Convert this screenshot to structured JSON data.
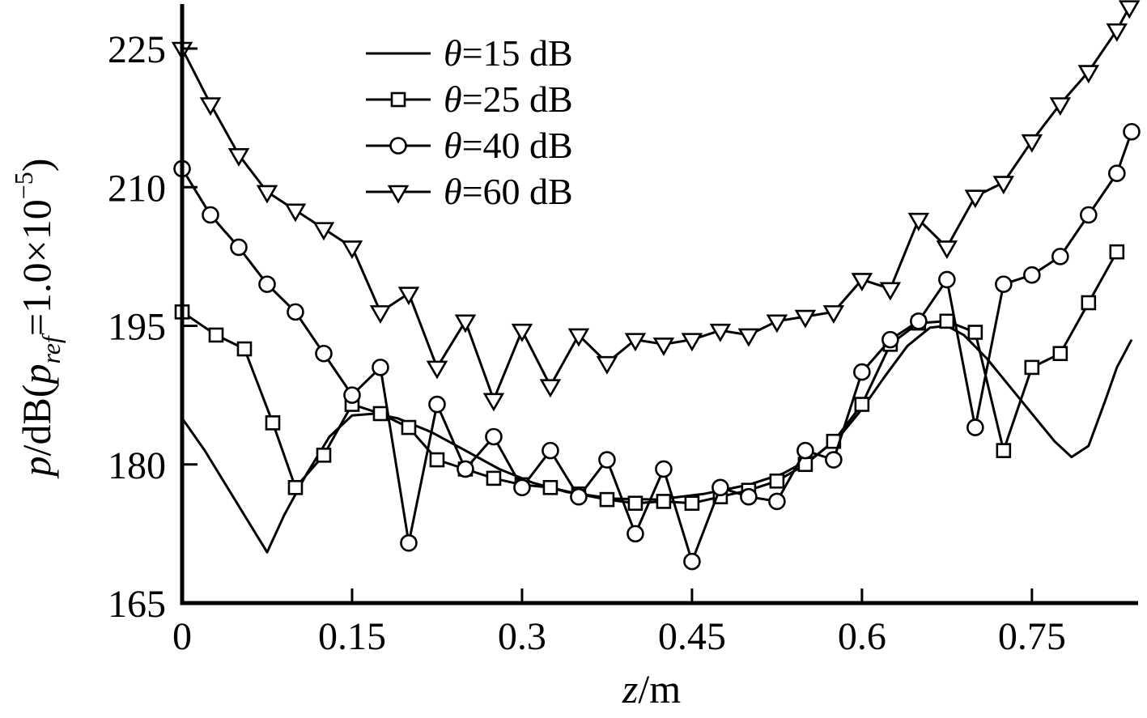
{
  "page": {
    "background": "#ffffff",
    "ink": "#000000"
  },
  "chart_data": {
    "type": "line",
    "title": "",
    "xlabel": "z/m",
    "ylabel": "p/dB(p_ref=1.0×10⁻⁵)",
    "xlabel_parts": {
      "sym": "z",
      "rest": "/m"
    },
    "ylabel_parts": {
      "sym": "p",
      "mid": "/dB(",
      "refsym": "p",
      "refsub": "ref",
      "eq": "=1.0×10",
      "exp": "−5",
      "close": ")"
    },
    "xlim": [
      0,
      0.843
    ],
    "ylim": [
      165,
      225
    ],
    "x_ticks": [
      "0",
      "0.15",
      "0.3",
      "0.45",
      "0.6",
      "0.75"
    ],
    "x_tick_values": [
      0,
      0.15,
      0.3,
      0.45,
      0.6,
      0.75
    ],
    "y_ticks": [
      "165",
      "180",
      "195",
      "210",
      "225"
    ],
    "y_tick_values": [
      165,
      180,
      195,
      210,
      225
    ],
    "grid": false,
    "legend_position": "top-center",
    "series": [
      {
        "name": "θ=15 dB",
        "legend": {
          "sym": "θ",
          "rest": "=15 dB"
        },
        "marker": "none",
        "color": "#000000",
        "points": [
          [
            0,
            185
          ],
          [
            0.02,
            181.5
          ],
          [
            0.04,
            177.5
          ],
          [
            0.06,
            173.5
          ],
          [
            0.075,
            170.5
          ],
          [
            0.09,
            174.5
          ],
          [
            0.11,
            179
          ],
          [
            0.13,
            183
          ],
          [
            0.15,
            185.3
          ],
          [
            0.17,
            185.5
          ],
          [
            0.19,
            185
          ],
          [
            0.22,
            183.5
          ],
          [
            0.25,
            181.5
          ],
          [
            0.28,
            179.5
          ],
          [
            0.31,
            178
          ],
          [
            0.34,
            177
          ],
          [
            0.38,
            176.3
          ],
          [
            0.42,
            176.2
          ],
          [
            0.46,
            176.8
          ],
          [
            0.5,
            177.8
          ],
          [
            0.53,
            179
          ],
          [
            0.56,
            181
          ],
          [
            0.58,
            183
          ],
          [
            0.6,
            186
          ],
          [
            0.62,
            189.5
          ],
          [
            0.64,
            192.8
          ],
          [
            0.66,
            194.8
          ],
          [
            0.675,
            195
          ],
          [
            0.69,
            194
          ],
          [
            0.71,
            191.5
          ],
          [
            0.73,
            188.5
          ],
          [
            0.75,
            185.5
          ],
          [
            0.77,
            182.5
          ],
          [
            0.785,
            180.8
          ],
          [
            0.8,
            182
          ],
          [
            0.815,
            187
          ],
          [
            0.825,
            190.5
          ],
          [
            0.838,
            193.5
          ]
        ]
      },
      {
        "name": "θ=25 dB",
        "legend": {
          "sym": "θ",
          "rest": "=25 dB"
        },
        "marker": "square",
        "color": "#000000",
        "points": [
          [
            0,
            196.5
          ],
          [
            0.03,
            194
          ],
          [
            0.055,
            192.5
          ],
          [
            0.08,
            184.5
          ],
          [
            0.1,
            177.5
          ],
          [
            0.125,
            181
          ],
          [
            0.15,
            186.5
          ],
          [
            0.175,
            185.5
          ],
          [
            0.2,
            184
          ],
          [
            0.225,
            180.5
          ],
          [
            0.25,
            179.5
          ],
          [
            0.275,
            178.5
          ],
          [
            0.3,
            177.8
          ],
          [
            0.325,
            177.5
          ],
          [
            0.35,
            176.8
          ],
          [
            0.375,
            176.2
          ],
          [
            0.4,
            175.8
          ],
          [
            0.425,
            176
          ],
          [
            0.45,
            175.8
          ],
          [
            0.475,
            176.5
          ],
          [
            0.5,
            177.2
          ],
          [
            0.525,
            178.2
          ],
          [
            0.55,
            180
          ],
          [
            0.575,
            182.5
          ],
          [
            0.6,
            186.5
          ],
          [
            0.625,
            193
          ],
          [
            0.65,
            195.3
          ],
          [
            0.675,
            195.5
          ],
          [
            0.7,
            194.3
          ],
          [
            0.725,
            181.5
          ],
          [
            0.75,
            190.5
          ],
          [
            0.775,
            192
          ],
          [
            0.8,
            197.5
          ],
          [
            0.825,
            203
          ]
        ]
      },
      {
        "name": "θ=40 dB",
        "legend": {
          "sym": "θ",
          "rest": "=40 dB"
        },
        "marker": "circle",
        "color": "#000000",
        "points": [
          [
            0,
            212
          ],
          [
            0.025,
            207
          ],
          [
            0.05,
            203.5
          ],
          [
            0.075,
            199.5
          ],
          [
            0.1,
            196.5
          ],
          [
            0.125,
            192
          ],
          [
            0.15,
            187.5
          ],
          [
            0.175,
            190.5
          ],
          [
            0.2,
            171.5
          ],
          [
            0.225,
            186.5
          ],
          [
            0.25,
            179.5
          ],
          [
            0.275,
            183
          ],
          [
            0.3,
            177.5
          ],
          [
            0.325,
            181.5
          ],
          [
            0.35,
            176.5
          ],
          [
            0.375,
            180.5
          ],
          [
            0.4,
            172.5
          ],
          [
            0.425,
            179.5
          ],
          [
            0.45,
            169.5
          ],
          [
            0.475,
            177.5
          ],
          [
            0.5,
            176.5
          ],
          [
            0.525,
            176
          ],
          [
            0.55,
            181.5
          ],
          [
            0.575,
            180.5
          ],
          [
            0.6,
            190
          ],
          [
            0.625,
            193.5
          ],
          [
            0.65,
            195.5
          ],
          [
            0.675,
            200
          ],
          [
            0.7,
            184
          ],
          [
            0.725,
            199.5
          ],
          [
            0.75,
            200.5
          ],
          [
            0.775,
            202.5
          ],
          [
            0.8,
            207
          ],
          [
            0.825,
            211.5
          ],
          [
            0.838,
            216
          ]
        ]
      },
      {
        "name": "θ=60 dB",
        "legend": {
          "sym": "θ",
          "rest": "=60 dB"
        },
        "marker": "triangle-down",
        "color": "#000000",
        "points": [
          [
            0,
            225
          ],
          [
            0.025,
            219
          ],
          [
            0.05,
            213.5
          ],
          [
            0.075,
            209.5
          ],
          [
            0.1,
            207.5
          ],
          [
            0.125,
            205.5
          ],
          [
            0.15,
            203.5
          ],
          [
            0.175,
            196.5
          ],
          [
            0.2,
            198.5
          ],
          [
            0.225,
            190.5
          ],
          [
            0.25,
            195.5
          ],
          [
            0.275,
            187
          ],
          [
            0.3,
            194.5
          ],
          [
            0.325,
            188.5
          ],
          [
            0.35,
            194
          ],
          [
            0.375,
            191
          ],
          [
            0.4,
            193.5
          ],
          [
            0.425,
            193
          ],
          [
            0.45,
            193.5
          ],
          [
            0.475,
            194.5
          ],
          [
            0.5,
            194
          ],
          [
            0.525,
            195.5
          ],
          [
            0.55,
            196
          ],
          [
            0.575,
            196.5
          ],
          [
            0.6,
            200
          ],
          [
            0.625,
            199
          ],
          [
            0.65,
            206.5
          ],
          [
            0.675,
            203.5
          ],
          [
            0.7,
            209
          ],
          [
            0.725,
            210.5
          ],
          [
            0.75,
            215
          ],
          [
            0.775,
            219
          ],
          [
            0.8,
            222.5
          ],
          [
            0.825,
            227
          ],
          [
            0.836,
            229.5
          ]
        ]
      }
    ]
  }
}
